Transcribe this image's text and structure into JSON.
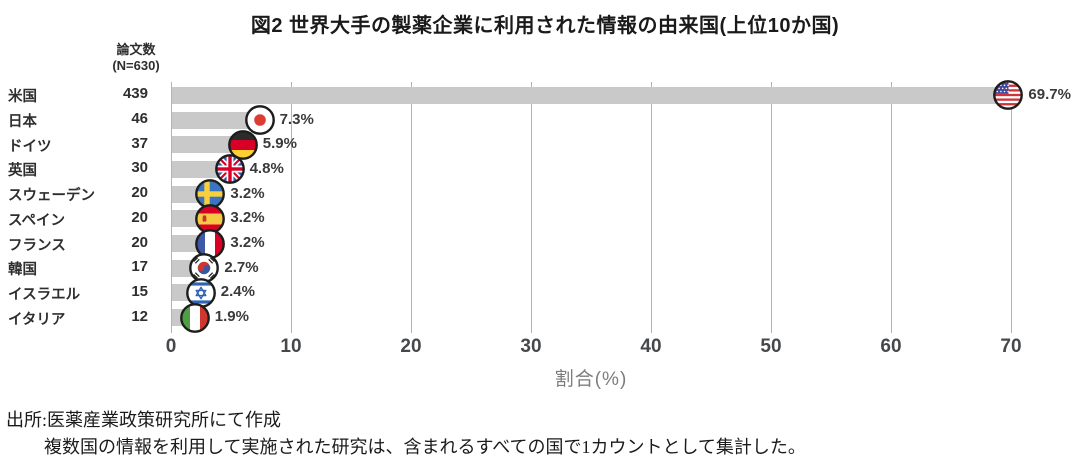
{
  "figure": {
    "title": "図2 世界大手の製薬企業に利用された情報の由来国(上位10か国)",
    "count_header": {
      "line1": "論文数",
      "line2": "(N=630)"
    },
    "source": {
      "line1": "出所:医薬産業政策研究所にて作成",
      "line2": "複数国の情報を利用して実施された研究は、含まれるすべての国で1カウントとして集計した。"
    }
  },
  "chart_data": {
    "type": "bar",
    "orientation": "horizontal",
    "title": "図2 世界大手の製薬企業に利用された情報の由来国(上位10か国)",
    "xlabel": "割合(%)",
    "xlim": [
      0,
      70
    ],
    "x_ticks": [
      0,
      10,
      20,
      30,
      40,
      50,
      60,
      70
    ],
    "grid": "vertical gridlines on",
    "count_column_header": "論文数(N=630)",
    "categories": [
      "米国",
      "日本",
      "ドイツ",
      "英国",
      "スウェーデン",
      "スペイン",
      "フランス",
      "韓国",
      "イスラエル",
      "イタリア"
    ],
    "counts": [
      439,
      46,
      37,
      30,
      20,
      20,
      20,
      17,
      15,
      12
    ],
    "values": [
      69.7,
      7.3,
      5.9,
      4.8,
      3.2,
      3.2,
      3.2,
      2.7,
      2.4,
      1.9
    ],
    "value_labels": [
      "69.7%",
      "7.3%",
      "5.9%",
      "4.8%",
      "3.2%",
      "3.2%",
      "3.2%",
      "2.7%",
      "2.4%",
      "1.9%"
    ],
    "flag_codes": [
      "us",
      "jp",
      "de",
      "gb",
      "se",
      "es",
      "fr",
      "kr",
      "il",
      "it"
    ],
    "flag_icon_names": [
      "us-flag-icon",
      "japan-flag-icon",
      "germany-flag-icon",
      "uk-flag-icon",
      "sweden-flag-icon",
      "spain-flag-icon",
      "france-flag-icon",
      "south-korea-flag-icon",
      "israel-flag-icon",
      "italy-flag-icon"
    ],
    "legend": "none"
  },
  "colors": {
    "bar": "#c9c9c9",
    "gridline": "#b3b3b3",
    "title_text": "#1a1a1a",
    "label_text": "#2e2e2e",
    "tick_text": "#46484c",
    "axis_label_text": "#7d7d7d",
    "source_text": "#1b1b1b"
  }
}
